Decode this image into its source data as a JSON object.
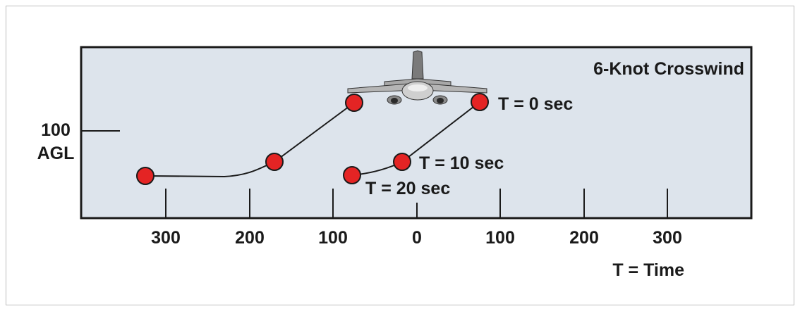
{
  "title": "6-Knot Crosswind",
  "y_label": {
    "value": "100",
    "unit": "AGL"
  },
  "x_ticks": [
    "300",
    "200",
    "100",
    "0",
    "100",
    "200",
    "300"
  ],
  "x_axis_label": "T = Time",
  "time_labels": {
    "t0": "T = 0 sec",
    "t10": "T = 10 sec",
    "t20": "T = 20 sec"
  },
  "colors": {
    "panel": "#dde4ec",
    "marker": "#e42424",
    "outline": "#1a1a1a"
  },
  "icons": [
    "airplane-icon"
  ]
}
